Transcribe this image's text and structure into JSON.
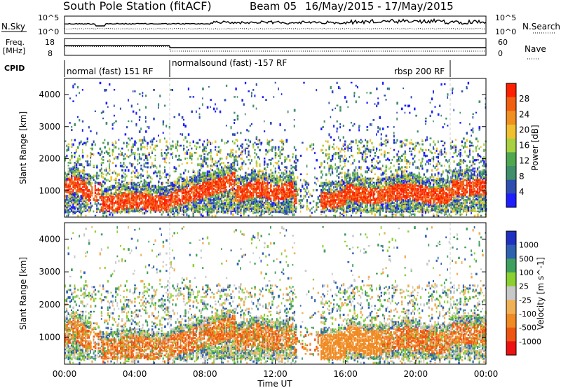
{
  "header": {
    "station": "South Pole Station (fitACF)",
    "beam": "Beam 05",
    "date_range": "16/May/2015 - 17/May/2015"
  },
  "top_panels": {
    "nsky_label": "N.Sky",
    "nsky_ticks": [
      "10^5",
      "10^0"
    ],
    "nsearch_ticks": [
      "10^5",
      "10^0"
    ],
    "nsearch_label": "N.Search",
    "freq_label_1": "Freq.",
    "freq_label_2": "[MHz]",
    "freq_ticks": [
      "18",
      "8"
    ],
    "nave_ticks": [
      "60",
      "0"
    ],
    "nave_label": "Nave",
    "cpid_label": "CPID",
    "cpid_segments": [
      {
        "name": "normal (fast) 151 RF",
        "start_h": 0,
        "end_h": 6
      },
      {
        "name": "normalsound (fast) -157 RF",
        "start_h": 6,
        "end_h": 22
      },
      {
        "name": "rbsp 200 RF",
        "start_h": 22,
        "end_h": 24
      }
    ]
  },
  "colors": {
    "power": [
      "#1e1eff",
      "#2f4fb0",
      "#3f8f6a",
      "#4fa850",
      "#a8d040",
      "#f0c030",
      "#f09020",
      "#f06010",
      "#ff2000"
    ],
    "velocity": [
      "#ee1111",
      "#ee5511",
      "#f08a22",
      "#f0b055",
      "#c8c8c8",
      "#8ad030",
      "#3f9f5f",
      "#3060b0",
      "#2030c0"
    ]
  },
  "chart_data": [
    {
      "type": "heatmap",
      "name": "power",
      "xlabel": "",
      "ylabel": "Slant Range [km]",
      "xlim": [
        0,
        24
      ],
      "ylim": [
        180,
        4500
      ],
      "yticks": [
        "1000",
        "2000",
        "3000",
        "4000"
      ],
      "colorbar_label": "Power [dB]",
      "colorbar_ticks": [
        "4",
        "8",
        "12",
        "16",
        "20",
        "24",
        "28"
      ],
      "colorbar_range": [
        0,
        32
      ]
    },
    {
      "type": "heatmap",
      "name": "velocity",
      "xlabel": "Time UT",
      "ylabel": "Slant Range [km]",
      "xlim": [
        0,
        24
      ],
      "ylim": [
        180,
        4500
      ],
      "yticks": [
        "1000",
        "2000",
        "3000",
        "4000"
      ],
      "xticks": [
        "00:00",
        "04:00",
        "08:00",
        "12:00",
        "16:00",
        "20:00",
        "00:00"
      ],
      "colorbar_label": "Velocity [m s^-1]",
      "colorbar_ticks": [
        "1000",
        "500",
        "100",
        "25",
        "-25",
        "-100",
        "-500",
        "-1000"
      ]
    }
  ]
}
